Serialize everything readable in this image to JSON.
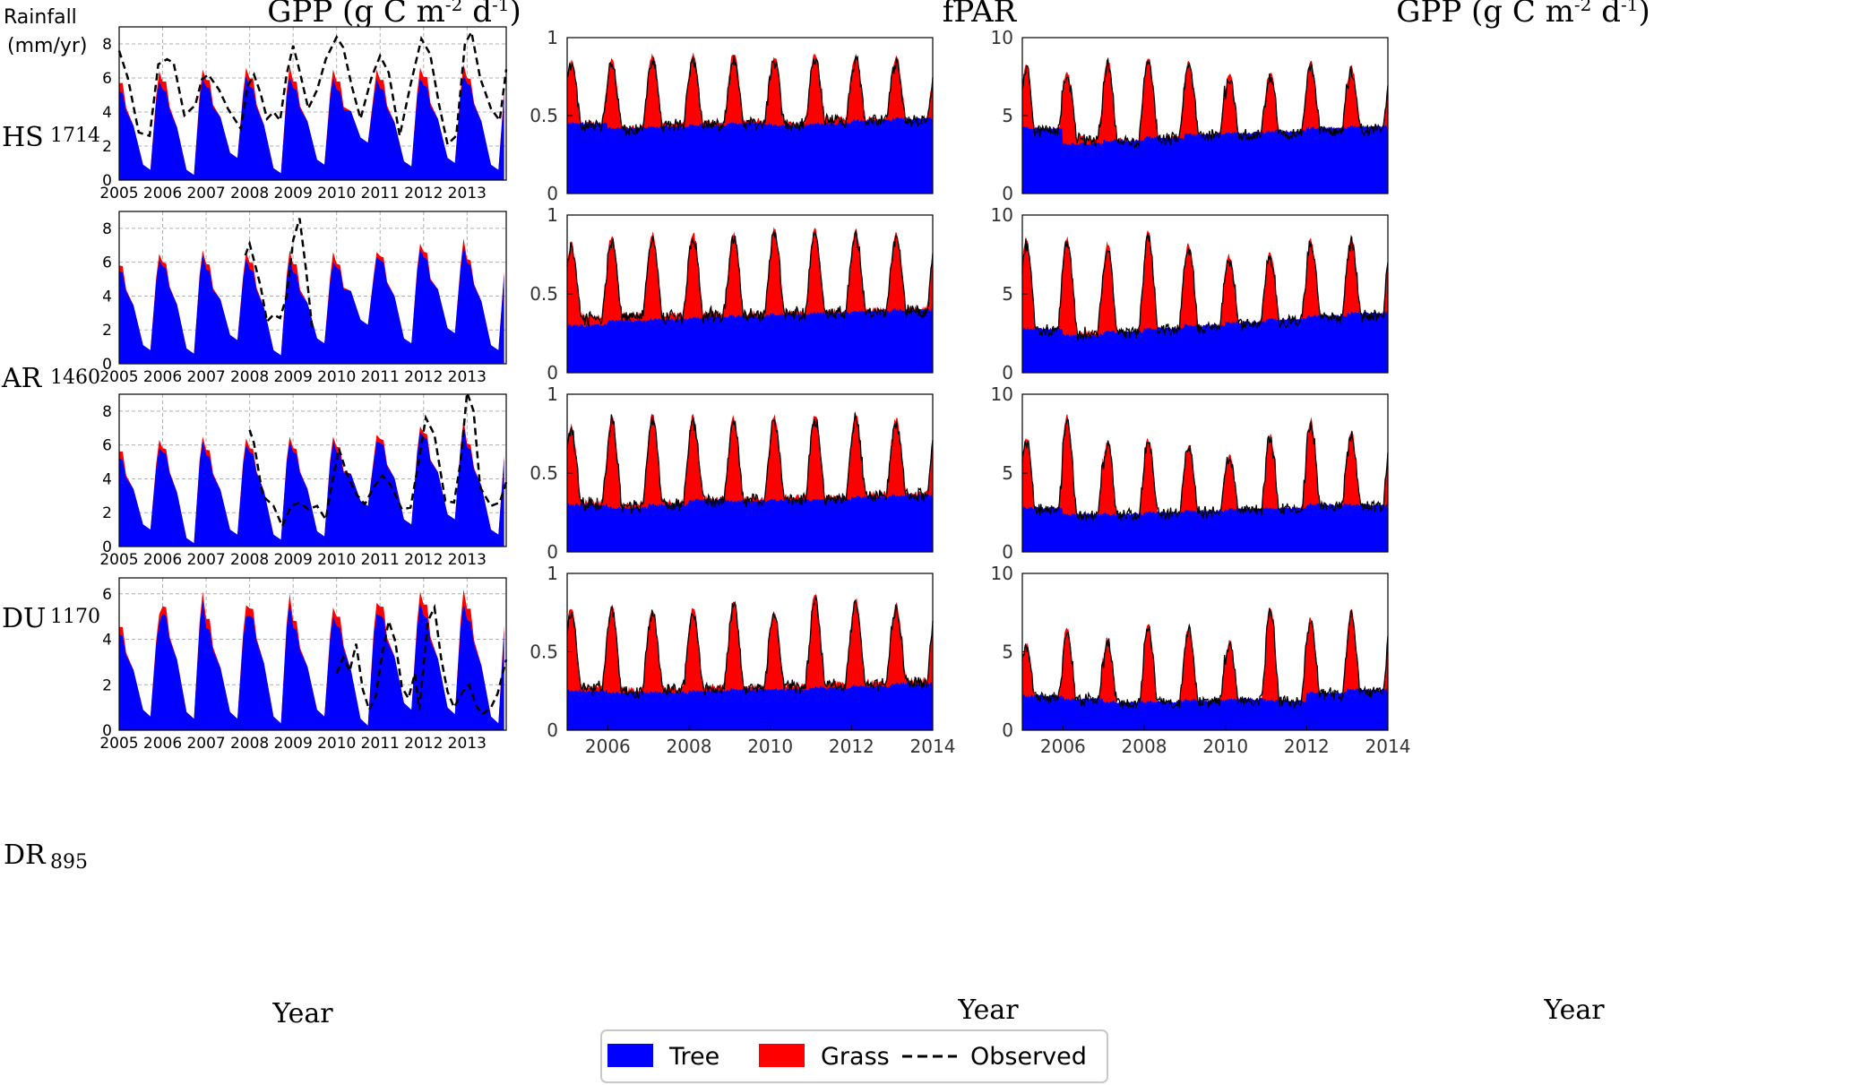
{
  "figure": {
    "column_titles": [
      "GPP (g C m-2 d-1)",
      "fPAR",
      "GPP (g C m-2 d-1)"
    ],
    "title_parts": {
      "a": "GPP (g C m",
      "sup1": "-2",
      "b": " d",
      "sup2": "-1",
      "c": ")"
    },
    "rainfall_header_line1": "Rainfall",
    "rainfall_header_line2": "(mm/yr)",
    "xlabel": "Year",
    "legend": [
      {
        "label": "Tree",
        "color": "#0000ff",
        "style": "patch"
      },
      {
        "label": "Grass",
        "color": "#ff0000",
        "style": "patch"
      },
      {
        "label": "Observed",
        "color": "#000000",
        "style": "dashed-line"
      }
    ],
    "sites": [
      {
        "code": "HS",
        "rainfall": "1714"
      },
      {
        "code": "AR",
        "rainfall": "1460"
      },
      {
        "code": "DU",
        "rainfall": "1170"
      },
      {
        "code": "DR",
        "rainfall": "895"
      }
    ],
    "colors": {
      "tree": "#0000ff",
      "grass": "#ff0000",
      "observed": "#000000"
    }
  },
  "chart_data": [
    {
      "type": "area",
      "column": 1,
      "variable": "GPP (g C m-2 d-1)",
      "xlabel": "Year",
      "x_ticks": [
        "2005",
        "2006",
        "2007",
        "2008",
        "2009",
        "2010",
        "2011",
        "2012",
        "2013"
      ],
      "x_range": [
        2005,
        2013.9
      ],
      "grid": true,
      "series_names": [
        "Tree",
        "Grass",
        "Observed"
      ],
      "panels": [
        {
          "site": "HS",
          "y_ticks": [
            0,
            2,
            4,
            6,
            8
          ],
          "ylim": [
            0,
            9.0
          ],
          "tree_peaks": [
            5.8,
            5.9,
            6.1,
            6.1,
            6.0,
            5.9,
            6.0,
            6.2,
            6.3
          ],
          "grass_peaks": [
            0.6,
            0.6,
            0.5,
            0.6,
            0.5,
            0.6,
            0.6,
            0.6,
            0.4
          ],
          "tree_min": [
            0.6,
            0.3,
            1.3,
            0.4,
            0.9,
            2.2,
            0.8,
            1.0,
            0.6
          ],
          "observed": [
            [
              2005.0,
              7.6
            ],
            [
              2005.2,
              6.0
            ],
            [
              2005.45,
              2.8
            ],
            [
              2005.7,
              2.6
            ],
            [
              2005.9,
              6.8
            ],
            [
              2006.1,
              7.1
            ],
            [
              2006.25,
              6.9
            ],
            [
              2006.5,
              3.8
            ],
            [
              2006.75,
              4.4
            ],
            [
              2006.9,
              5.9
            ],
            [
              2007.05,
              6.2
            ],
            [
              2007.3,
              5.3
            ],
            [
              2007.5,
              4.2
            ],
            [
              2007.8,
              3.0
            ],
            [
              2007.95,
              5.5
            ],
            [
              2008.1,
              6.2
            ],
            [
              2008.25,
              5.1
            ],
            [
              2008.4,
              3.6
            ],
            [
              2008.55,
              4.0
            ],
            [
              2008.7,
              3.5
            ],
            [
              2008.85,
              6.2
            ],
            [
              2009.0,
              7.9
            ],
            [
              2009.15,
              6.4
            ],
            [
              2009.35,
              4.2
            ],
            [
              2009.55,
              5.3
            ],
            [
              2009.75,
              7.1
            ],
            [
              2010.0,
              8.4
            ],
            [
              2010.15,
              7.8
            ],
            [
              2010.35,
              5.5
            ],
            [
              2010.55,
              3.6
            ],
            [
              2010.8,
              6.0
            ],
            [
              2011.0,
              7.3
            ],
            [
              2011.2,
              6.3
            ],
            [
              2011.45,
              2.6
            ],
            [
              2011.7,
              5.6
            ],
            [
              2011.95,
              8.3
            ],
            [
              2012.15,
              7.4
            ],
            [
              2012.35,
              4.5
            ],
            [
              2012.55,
              2.1
            ],
            [
              2012.75,
              2.6
            ],
            [
              2012.95,
              8.0
            ],
            [
              2013.1,
              8.7
            ],
            [
              2013.3,
              6.0
            ],
            [
              2013.55,
              4.2
            ],
            [
              2013.75,
              3.5
            ],
            [
              2013.9,
              6.5
            ]
          ]
        },
        {
          "site": "AR",
          "y_ticks": [
            0,
            2,
            4,
            6,
            8
          ],
          "ylim": [
            0,
            9.0
          ],
          "tree_peaks": [
            6.1,
            6.4,
            6.2,
            6.2,
            6.0,
            6.3,
            6.8,
            7.0,
            6.6
          ],
          "grass_peaks": [
            0.4,
            0.3,
            0.4,
            0.5,
            0.6,
            0.3,
            0.3,
            0.4,
            0.3
          ],
          "tree_min": [
            0.8,
            0.6,
            1.4,
            0.5,
            1.2,
            2.3,
            1.2,
            1.8,
            0.8
          ],
          "observed": [
            [
              2007.9,
              6.4
            ],
            [
              2008.0,
              7.1
            ],
            [
              2008.1,
              6.1
            ],
            [
              2008.25,
              4.6
            ],
            [
              2008.4,
              2.5
            ],
            [
              2008.55,
              2.9
            ],
            [
              2008.7,
              2.7
            ],
            [
              2008.85,
              4.0
            ],
            [
              2009.0,
              7.3
            ],
            [
              2009.15,
              8.6
            ],
            [
              2009.3,
              5.5
            ],
            [
              2009.45,
              1.8
            ]
          ]
        },
        {
          "site": "DU",
          "y_ticks": [
            0,
            2,
            4,
            6,
            8
          ],
          "ylim": [
            0,
            9.0
          ],
          "tree_peaks": [
            5.8,
            6.2,
            6.0,
            6.2,
            6.2,
            6.2,
            6.8,
            7.2,
            6.5
          ],
          "grass_peaks": [
            0.5,
            0.3,
            0.4,
            0.3,
            0.3,
            0.4,
            0.3,
            0.3,
            0.3
          ],
          "tree_min": [
            1.0,
            0.2,
            0.7,
            0.4,
            0.6,
            2.4,
            1.3,
            1.6,
            0.7
          ],
          "observed": [
            [
              2008.0,
              6.9
            ],
            [
              2008.1,
              6.1
            ],
            [
              2008.3,
              3.0
            ],
            [
              2008.55,
              2.4
            ],
            [
              2008.75,
              1.2
            ],
            [
              2008.95,
              2.4
            ],
            [
              2009.15,
              2.6
            ],
            [
              2009.35,
              2.2
            ],
            [
              2009.55,
              2.4
            ],
            [
              2009.75,
              1.6
            ],
            [
              2009.9,
              3.8
            ],
            [
              2010.05,
              5.8
            ],
            [
              2010.25,
              4.2
            ],
            [
              2010.45,
              3.1
            ],
            [
              2010.65,
              2.5
            ],
            [
              2010.85,
              3.5
            ],
            [
              2011.05,
              4.2
            ],
            [
              2011.25,
              3.6
            ],
            [
              2011.5,
              2.2
            ],
            [
              2011.7,
              2.3
            ],
            [
              2011.9,
              5.2
            ],
            [
              2012.05,
              7.6
            ],
            [
              2012.25,
              6.6
            ],
            [
              2012.5,
              2.7
            ],
            [
              2012.7,
              2.6
            ],
            [
              2012.85,
              5.0
            ],
            [
              2013.0,
              9.1
            ],
            [
              2013.15,
              8.0
            ],
            [
              2013.3,
              3.5
            ],
            [
              2013.55,
              2.4
            ],
            [
              2013.75,
              2.6
            ],
            [
              2013.9,
              3.8
            ]
          ]
        },
        {
          "site": "DR",
          "y_ticks": [
            0,
            2,
            4,
            6
          ],
          "ylim": [
            0,
            6.7
          ],
          "tree_peaks": [
            4.7,
            5.7,
            5.0,
            5.6,
            5.0,
            5.1,
            5.6,
            5.6,
            5.4
          ],
          "grass_peaks": [
            0.4,
            0.4,
            0.5,
            0.4,
            0.4,
            0.5,
            0.5,
            0.6,
            0.6
          ],
          "tree_min": [
            0.6,
            0.5,
            0.5,
            0.3,
            0.6,
            0.2,
            0.9,
            0.7,
            0.3
          ],
          "observed": [
            [
              2010.0,
              2.5
            ],
            [
              2010.15,
              3.2
            ],
            [
              2010.3,
              2.6
            ],
            [
              2010.45,
              3.8
            ],
            [
              2010.6,
              1.8
            ],
            [
              2010.75,
              0.9
            ],
            [
              2010.9,
              1.5
            ],
            [
              2011.05,
              3.4
            ],
            [
              2011.2,
              4.8
            ],
            [
              2011.35,
              3.9
            ],
            [
              2011.5,
              1.9
            ],
            [
              2011.65,
              1.4
            ],
            [
              2011.8,
              2.5
            ],
            [
              2011.9,
              0.9
            ],
            [
              2012.1,
              4.8
            ],
            [
              2012.25,
              5.4
            ],
            [
              2012.4,
              3.2
            ],
            [
              2012.55,
              1.7
            ],
            [
              2012.7,
              1.0
            ],
            [
              2012.9,
              1.7
            ],
            [
              2013.05,
              2.0
            ],
            [
              2013.2,
              1.1
            ],
            [
              2013.35,
              0.7
            ],
            [
              2013.55,
              1.0
            ],
            [
              2013.7,
              1.6
            ],
            [
              2013.9,
              3.1
            ]
          ]
        }
      ]
    },
    {
      "type": "area",
      "column": 2,
      "variable": "fPAR",
      "xlabel": "Year",
      "x_ticks": [
        "2006",
        "2008",
        "2010",
        "2012",
        "2014"
      ],
      "x_range": [
        2005.0,
        2014.0
      ],
      "y_ticks": [
        "0",
        "0.5",
        "1"
      ],
      "ylim": [
        0,
        1
      ],
      "grid": false,
      "panels": [
        {
          "site": "HS",
          "tree_level": [
            0.45,
            0.42,
            0.43,
            0.44,
            0.45,
            0.44,
            0.45,
            0.47,
            0.48,
            0.46
          ],
          "total_peaks": [
            0.85,
            0.87,
            0.89,
            0.89,
            0.9,
            0.88,
            0.9,
            0.89,
            0.88
          ],
          "total_min": [
            0.45,
            0.42,
            0.45,
            0.46,
            0.47,
            0.45,
            0.48,
            0.48,
            0.47
          ]
        },
        {
          "site": "AR",
          "tree_level": [
            0.3,
            0.33,
            0.34,
            0.35,
            0.36,
            0.37,
            0.38,
            0.39,
            0.4,
            0.4
          ],
          "total_peaks": [
            0.82,
            0.87,
            0.88,
            0.89,
            0.89,
            0.91,
            0.91,
            0.9,
            0.88
          ],
          "total_min": [
            0.36,
            0.37,
            0.37,
            0.38,
            0.38,
            0.39,
            0.4,
            0.4,
            0.41
          ]
        },
        {
          "site": "DU",
          "tree_level": [
            0.3,
            0.28,
            0.3,
            0.33,
            0.32,
            0.33,
            0.33,
            0.35,
            0.36,
            0.34
          ],
          "total_peaks": [
            0.8,
            0.86,
            0.87,
            0.86,
            0.86,
            0.86,
            0.88,
            0.88,
            0.84
          ],
          "total_min": [
            0.32,
            0.3,
            0.32,
            0.34,
            0.34,
            0.35,
            0.35,
            0.37,
            0.37
          ]
        },
        {
          "site": "DR",
          "tree_level": [
            0.25,
            0.24,
            0.24,
            0.25,
            0.26,
            0.26,
            0.27,
            0.28,
            0.3,
            0.24
          ],
          "total_peaks": [
            0.79,
            0.79,
            0.78,
            0.78,
            0.82,
            0.75,
            0.87,
            0.84,
            0.8
          ],
          "total_min": [
            0.28,
            0.26,
            0.27,
            0.28,
            0.28,
            0.29,
            0.3,
            0.31,
            0.32
          ]
        }
      ]
    },
    {
      "type": "area",
      "column": 3,
      "variable": "GPP (g C m-2 d-1)",
      "xlabel": "Year",
      "x_ticks": [
        "2006",
        "2008",
        "2010",
        "2012",
        "2014"
      ],
      "x_range": [
        2005.0,
        2014.0
      ],
      "y_ticks": [
        "0",
        "5",
        "10"
      ],
      "ylim": [
        0,
        10
      ],
      "grid": false,
      "panels": [
        {
          "site": "HS",
          "tree_level": [
            4.2,
            3.2,
            3.4,
            3.6,
            3.8,
            3.9,
            4.0,
            4.2,
            4.3,
            3.6
          ],
          "total_peaks": [
            8.4,
            7.8,
            8.6,
            8.8,
            8.4,
            7.6,
            7.8,
            8.5,
            8.2
          ],
          "total_min": [
            3.0,
            3.6,
            3.4,
            3.6,
            3.8,
            3.6,
            3.8,
            3.9,
            3.8
          ]
        },
        {
          "site": "AR",
          "tree_level": [
            2.8,
            2.4,
            2.6,
            2.8,
            3.0,
            3.2,
            3.4,
            3.6,
            3.8,
            3.4
          ],
          "total_peaks": [
            8.5,
            8.6,
            8.2,
            8.9,
            8.2,
            7.4,
            7.6,
            8.4,
            8.6
          ],
          "total_min": [
            2.4,
            2.6,
            2.5,
            2.6,
            2.7,
            3.0,
            3.2,
            3.4,
            3.3
          ]
        },
        {
          "site": "DU",
          "tree_level": [
            2.8,
            2.4,
            2.4,
            2.5,
            2.6,
            2.7,
            2.8,
            3.0,
            3.0,
            2.4
          ],
          "total_peaks": [
            7.2,
            8.6,
            7.0,
            7.2,
            6.8,
            6.2,
            7.4,
            8.4,
            7.6
          ],
          "total_min": [
            2.0,
            2.0,
            2.1,
            2.1,
            2.2,
            2.2,
            2.3,
            2.4,
            2.3
          ]
        },
        {
          "site": "DR",
          "tree_level": [
            2.2,
            2.0,
            1.8,
            1.8,
            1.9,
            2.0,
            1.9,
            2.4,
            2.6,
            1.8
          ],
          "total_peaks": [
            5.5,
            6.6,
            5.8,
            6.8,
            6.7,
            5.6,
            7.9,
            7.2,
            7.6
          ],
          "total_min": [
            1.4,
            1.2,
            1.2,
            1.3,
            1.3,
            1.4,
            1.4,
            1.6,
            1.5
          ]
        }
      ]
    }
  ]
}
